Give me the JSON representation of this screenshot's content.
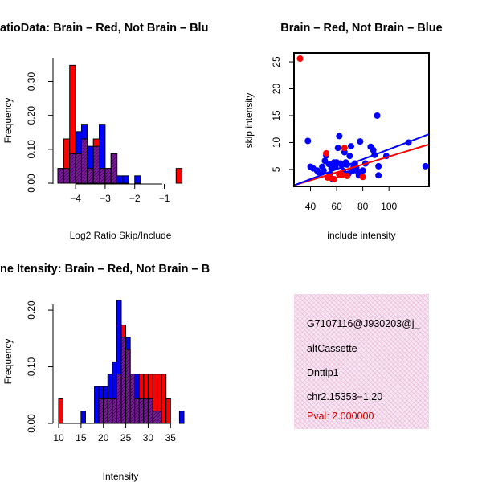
{
  "colors": {
    "red": "#ff0000",
    "blue": "#0000ff",
    "purple": "#7a1a9a",
    "box_pink": "#f8e6f2"
  },
  "chart_data": [
    {
      "type": "bar",
      "title": "RatioData: Brain - Red, Not Brain - Blue",
      "title_visible": "atioData: Brain – Red, Not Brain – Blu",
      "xlabel": "Log2 Ratio Skip/Include",
      "ylabel": "Frequency",
      "xlim": [
        -4.6,
        -0.2
      ],
      "ylim": [
        0,
        0.37
      ],
      "xticks": [
        -4,
        -3,
        -2,
        -1
      ],
      "xtick_labels": [
        "−4",
        "−3",
        "−2",
        "−1"
      ],
      "yticks": [
        0.0,
        0.1,
        0.2,
        0.3
      ],
      "ytick_labels": [
        "0.00",
        "0.10",
        "0.20",
        "0.30"
      ],
      "bin_edges": [
        -4.6,
        -4.4,
        -4.2,
        -4.0,
        -3.8,
        -3.6,
        -3.4,
        -3.2,
        -3.0,
        -2.8,
        -2.6,
        -2.4,
        -2.2,
        -2.0,
        -1.8,
        -1.6,
        -1.4,
        -1.2,
        -1.0,
        -0.8,
        -0.6,
        -0.4
      ],
      "series": [
        {
          "name": "Brain",
          "color": "red",
          "values": [
            0.0435,
            0.1304,
            0.3478,
            0.087,
            0.1304,
            0.0435,
            0.1304,
            0.0435,
            0.0435,
            0.087,
            0,
            0,
            0,
            0,
            0,
            0,
            0,
            0,
            0,
            0,
            0.0435
          ]
        },
        {
          "name": "Not Brain",
          "color": "blue",
          "values": [
            0.0435,
            0.0435,
            0.087,
            0.1522,
            0.1739,
            0.1087,
            0.1087,
            0.1739,
            0.0435,
            0.087,
            0.0217,
            0.0217,
            0,
            0.0217,
            0,
            0,
            0,
            0,
            0,
            0,
            0
          ]
        }
      ]
    },
    {
      "type": "scatter",
      "title": "Brain - Red, Not Brain - Blue",
      "title_visible": "Brain – Red, Not Brain – Blue",
      "xlabel": "include intensity",
      "ylabel": "skip intensity",
      "xlim": [
        28,
        130
      ],
      "ylim": [
        2,
        26.5
      ],
      "xticks": [
        40,
        60,
        80,
        100
      ],
      "yticks": [
        5,
        10,
        15,
        20,
        25
      ],
      "series": [
        {
          "name": "Brain",
          "color": "red",
          "points": [
            [
              32,
              25.6
            ],
            [
              52,
              8
            ],
            [
              53,
              3.5
            ],
            [
              55,
              3.5
            ],
            [
              58,
              3.2
            ],
            [
              62,
              4
            ],
            [
              64,
              4
            ],
            [
              66,
              9
            ],
            [
              68,
              3.8
            ],
            [
              80,
              3.6
            ]
          ],
          "fit": [
            [
              28,
              2.1
            ],
            [
              130,
              9.6
            ]
          ]
        },
        {
          "name": "Not Brain",
          "color": "blue",
          "points": [
            [
              38,
              10.3
            ],
            [
              40,
              5.5
            ],
            [
              42,
              5.2
            ],
            [
              45,
              4.8
            ],
            [
              46,
              4.5
            ],
            [
              48,
              4.4
            ],
            [
              49,
              5.5
            ],
            [
              50,
              4.8
            ],
            [
              51,
              6.6
            ],
            [
              52,
              7.6
            ],
            [
              54,
              6
            ],
            [
              55,
              4.1
            ],
            [
              56,
              5.2
            ],
            [
              57,
              3.2
            ],
            [
              58,
              6.3
            ],
            [
              59,
              5.5
            ],
            [
              60,
              6.3
            ],
            [
              61,
              9
            ],
            [
              62,
              11.2
            ],
            [
              63,
              6.1
            ],
            [
              64,
              5.8
            ],
            [
              65,
              4.7
            ],
            [
              66,
              8.2
            ],
            [
              67,
              6.3
            ],
            [
              68,
              5.9
            ],
            [
              69,
              4.2
            ],
            [
              70,
              7.5
            ],
            [
              71,
              9.3
            ],
            [
              72,
              4.7
            ],
            [
              73,
              5.5
            ],
            [
              74,
              6.1
            ],
            [
              75,
              5.4
            ],
            [
              76,
              4.7
            ],
            [
              77,
              3.9
            ],
            [
              78,
              10.2
            ],
            [
              80,
              4.8
            ],
            [
              82,
              6.1
            ],
            [
              86,
              9.2
            ],
            [
              88,
              8.6
            ],
            [
              89,
              7.7
            ],
            [
              91,
              15
            ],
            [
              92,
              5.6
            ],
            [
              92,
              3.9
            ],
            [
              98,
              7.5
            ],
            [
              115,
              10
            ],
            [
              128,
              5.6
            ]
          ],
          "fit": [
            [
              28,
              2.1
            ],
            [
              130,
              11.5
            ]
          ]
        }
      ]
    },
    {
      "type": "bar",
      "title": "Gene Itensity: Brain - Red, Not Brain - Blue",
      "title_visible": "ne Itensity: Brain – Red, Not Brain – B",
      "xlabel": "Intensity",
      "ylabel": "Frequency",
      "xlim": [
        10,
        38
      ],
      "ylim": [
        0,
        0.22
      ],
      "xticks": [
        10,
        15,
        20,
        25,
        30,
        35
      ],
      "xtick_labels": [
        "10",
        "15",
        "20",
        "25",
        "30",
        "35"
      ],
      "yticks": [
        0.0,
        0.1,
        0.2
      ],
      "ytick_labels": [
        "0.00",
        "0.10",
        "0.20"
      ],
      "bin_edges": [
        10,
        11,
        12,
        13,
        14,
        15,
        16,
        17,
        18,
        19,
        20,
        21,
        22,
        23,
        24,
        25,
        26,
        27,
        28,
        29,
        30,
        31,
        32,
        33,
        34,
        35,
        36,
        37,
        38
      ],
      "series": [
        {
          "name": "Brain",
          "color": "red",
          "values": [
            0.0435,
            0,
            0,
            0,
            0,
            0,
            0,
            0,
            0,
            0.0435,
            0.0435,
            0.0435,
            0.0435,
            0.087,
            0.1739,
            0.1304,
            0.087,
            0.0435,
            0.087,
            0.087,
            0.087,
            0.087,
            0.087,
            0.087,
            0.0435,
            0,
            0,
            0
          ]
        },
        {
          "name": "Not Brain",
          "color": "blue",
          "values": [
            0,
            0,
            0,
            0,
            0,
            0.0217,
            0,
            0,
            0.0652,
            0.0652,
            0.0652,
            0.087,
            0.1087,
            0.2174,
            0.1522,
            0.1522,
            0.087,
            0.087,
            0.0435,
            0.0435,
            0.0435,
            0.0217,
            0.0217,
            0,
            0,
            0,
            0,
            0.0217
          ]
        }
      ]
    }
  ],
  "info": {
    "id": "G7107116@J930203@j_",
    "event_type": "altCassette",
    "gene": "Dnttip1",
    "location": "chr2.15353−1.20",
    "pval": "Pval: 2.000000"
  }
}
